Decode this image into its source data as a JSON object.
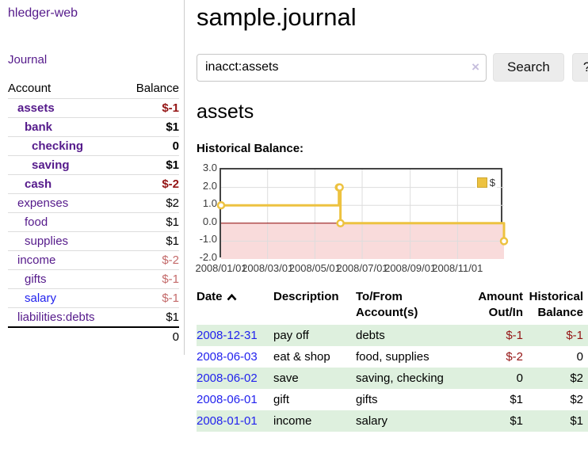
{
  "app": {
    "title": "hledger-web"
  },
  "sidebar": {
    "journal_link": "Journal",
    "table": {
      "account_header": "Account",
      "balance_header": "Balance",
      "rows": [
        {
          "name": "assets",
          "balance": "$-1"
        },
        {
          "name": "bank",
          "balance": "$1"
        },
        {
          "name": "checking",
          "balance": "0"
        },
        {
          "name": "saving",
          "balance": "$1"
        },
        {
          "name": "cash",
          "balance": "$-2"
        },
        {
          "name": "expenses",
          "balance": "$2"
        },
        {
          "name": "food",
          "balance": "$1"
        },
        {
          "name": "supplies",
          "balance": "$1"
        },
        {
          "name": "income",
          "balance": "$-2"
        },
        {
          "name": "gifts",
          "balance": "$-1"
        },
        {
          "name": "salary",
          "balance": "$-1"
        },
        {
          "name": "liabilities:debts",
          "balance": "$1"
        }
      ],
      "total": "0"
    }
  },
  "main": {
    "title": "sample.journal",
    "search": {
      "value": "inacct:assets",
      "clear_icon": "×",
      "button_label": "Search",
      "help_label": "?"
    },
    "account_heading": "assets",
    "chart_label": "Historical Balance:"
  },
  "chart_data": {
    "type": "line",
    "title": "Historical Balance",
    "legend": [
      {
        "label": "$",
        "color": "#edc240"
      }
    ],
    "legend_position": "top-right",
    "grid": true,
    "xlim": [
      0,
      365
    ],
    "ylim": [
      -2,
      3
    ],
    "y_ticks": [
      {
        "v": 3,
        "label": "3.0"
      },
      {
        "v": 2,
        "label": "2.0"
      },
      {
        "v": 1,
        "label": "1.0"
      },
      {
        "v": 0,
        "label": "0.0"
      },
      {
        "v": -1,
        "label": "-1.0"
      },
      {
        "v": -2,
        "label": "-2.0"
      }
    ],
    "x_ticks": [
      {
        "v": 0,
        "label": "2008/01/01"
      },
      {
        "v": 60,
        "label": "2008/03/01"
      },
      {
        "v": 121,
        "label": "2008/05/01"
      },
      {
        "v": 182,
        "label": "2008/07/01"
      },
      {
        "v": 244,
        "label": "2008/09/01"
      },
      {
        "v": 305,
        "label": "2008/11/01"
      }
    ],
    "negative_region": {
      "from": -2,
      "to": 0,
      "color": "#f9dbdb"
    },
    "zero_line_color": "#8b0000",
    "series": [
      {
        "name": "$",
        "color": "#edc240",
        "steps": true,
        "line_width": 3,
        "marker": {
          "fill": "#ffffff",
          "radius": 4
        },
        "dates": [
          "2008-01-01",
          "2008-06-01",
          "2008-06-02",
          "2008-06-03",
          "2008-12-31"
        ],
        "points": [
          [
            0,
            1
          ],
          [
            152,
            2
          ],
          [
            153,
            2
          ],
          [
            154,
            0
          ],
          [
            365,
            -1
          ]
        ]
      }
    ]
  },
  "register": {
    "headers": {
      "date": "Date",
      "description": "Description",
      "accounts": "To/From Account(s)",
      "amount": "Amount Out/In",
      "balance": "Historical Balance"
    },
    "rows": [
      {
        "date": "2008-12-31",
        "description": "pay off",
        "accounts": "debts",
        "amount": "$-1",
        "balance": "$-1"
      },
      {
        "date": "2008-06-03",
        "description": "eat & shop",
        "accounts": "food, supplies",
        "amount": "$-2",
        "balance": "0"
      },
      {
        "date": "2008-06-02",
        "description": "save",
        "accounts": "saving, checking",
        "amount": "0",
        "balance": "$2"
      },
      {
        "date": "2008-06-01",
        "description": "gift",
        "accounts": "gifts",
        "amount": "$1",
        "balance": "$2"
      },
      {
        "date": "2008-01-01",
        "description": "income",
        "accounts": "salary",
        "amount": "$1",
        "balance": "$1"
      }
    ]
  }
}
